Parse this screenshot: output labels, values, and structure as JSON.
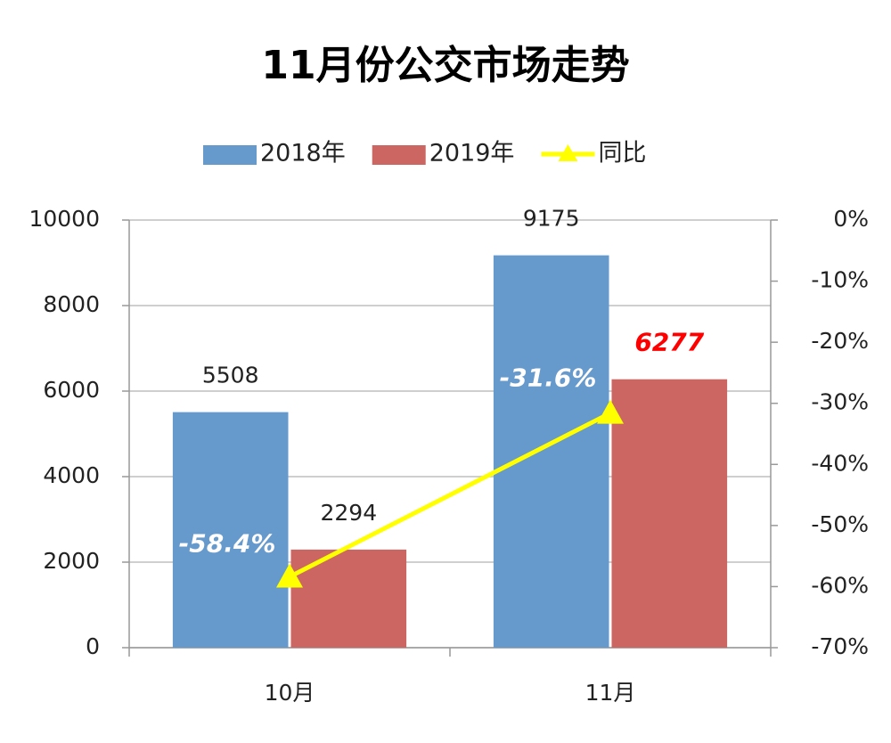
{
  "chart_data": {
    "type": "bar",
    "title": "11月份公交市场走势",
    "categories": [
      "10月",
      "11月"
    ],
    "series": [
      {
        "name": "2018年",
        "type": "bar",
        "color": "#6699cc",
        "values": [
          5508,
          9175
        ]
      },
      {
        "name": "2019年",
        "type": "bar",
        "color": "#cc6662",
        "values": [
          2294,
          6277
        ]
      },
      {
        "name": "同比",
        "type": "line",
        "color": "#ffff00",
        "axis": "y2",
        "values": [
          -58.4,
          -31.6
        ],
        "value_labels": [
          "-58.4%",
          "-31.6%"
        ]
      }
    ],
    "ylim": [
      0,
      10000
    ],
    "yticks": [
      0,
      2000,
      4000,
      6000,
      8000,
      10000
    ],
    "y2lim": [
      -70,
      0
    ],
    "y2ticks": [
      {
        "value": -70,
        "label": "-70%"
      },
      {
        "value": -60,
        "label": "-60%"
      },
      {
        "value": -50,
        "label": "-50%"
      },
      {
        "value": -40,
        "label": "-40%"
      },
      {
        "value": -30,
        "label": "-30%"
      },
      {
        "value": -20,
        "label": "-20%"
      },
      {
        "value": -10,
        "label": "-10%"
      },
      {
        "value": 0,
        "label": "0%"
      }
    ],
    "grid": true,
    "legend": "top"
  }
}
